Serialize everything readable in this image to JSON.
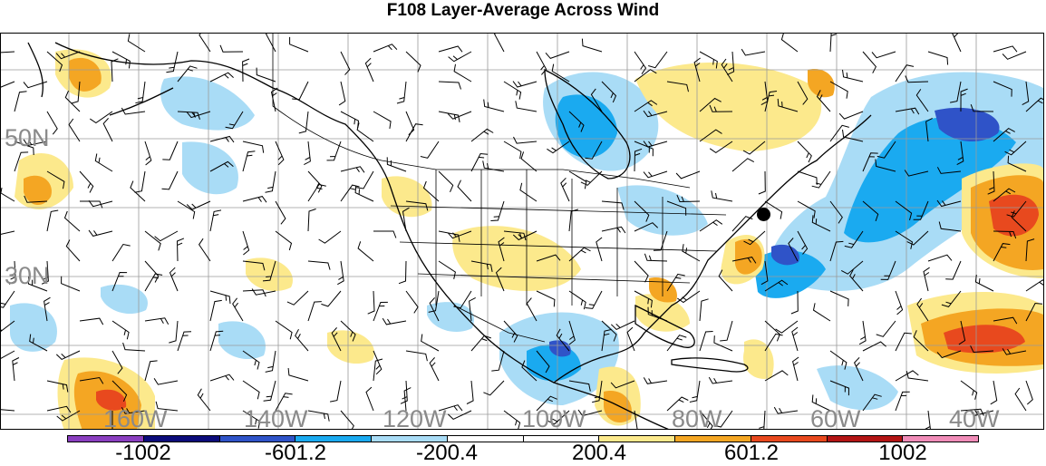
{
  "title": "F108 Layer-Average Across Wind",
  "lat_labels": [
    "50N",
    "30N"
  ],
  "lon_labels": [
    "160W",
    "140W",
    "120W",
    "100W",
    "80W",
    "60W",
    "40W"
  ],
  "colorbar": {
    "colors": [
      "#8a3fc0",
      "#0b0b7a",
      "#2f53c8",
      "#1aaaf0",
      "#a9dcf6",
      "#ffffff",
      "#ffffff",
      "#fce98c",
      "#f4a623",
      "#e8491e",
      "#b31414",
      "#f08cb8"
    ],
    "labels": [
      "-1002",
      "-601.2",
      "-200.4",
      "200.4",
      "601.2",
      "1002"
    ]
  },
  "marker": "station-point"
}
